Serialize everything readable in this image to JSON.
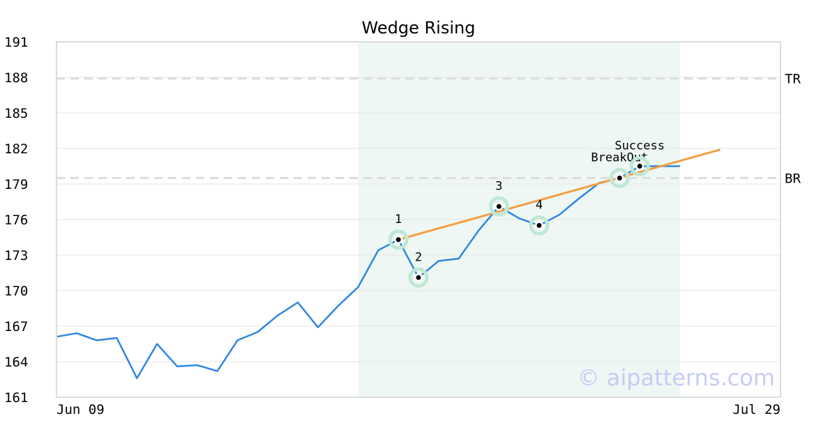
{
  "chart_data": {
    "type": "line",
    "title": "Wedge Rising",
    "watermark": "© aipatterns.com",
    "ylim": [
      161,
      191
    ],
    "y_ticks": [
      "191",
      "188",
      "185",
      "182",
      "179",
      "176",
      "173",
      "170",
      "167",
      "164",
      "161"
    ],
    "x_tick_labels": [
      "Jun 09",
      "Jul 29"
    ],
    "x_range": [
      0,
      36
    ],
    "series": [
      {
        "values": [
          166.1,
          166.4,
          165.8,
          166.0,
          162.6,
          165.5,
          163.6,
          163.7,
          163.2,
          165.8,
          166.5,
          167.9,
          169.0,
          166.9,
          168.7,
          170.3,
          173.4,
          174.3,
          171.1,
          172.5,
          172.7,
          175.1,
          177.1,
          176.1,
          175.5,
          176.4,
          177.8,
          179.1,
          179.5,
          180.5,
          180.5,
          180.5
        ]
      }
    ],
    "trendline": {
      "from": [
        17,
        174.3
      ],
      "to": [
        33,
        181.9
      ],
      "color": "#f59d44"
    },
    "highlight_range": [
      15,
      31
    ],
    "levels": [
      {
        "label": "TR",
        "value": 187.9
      },
      {
        "label": "BR",
        "value": 179.5
      }
    ],
    "markers": [
      {
        "label": "1",
        "x": 17,
        "y": 174.3
      },
      {
        "label": "2",
        "x": 18,
        "y": 171.1
      },
      {
        "label": "3",
        "x": 22,
        "y": 177.1
      },
      {
        "label": "4",
        "x": 24,
        "y": 175.5
      },
      {
        "label": "BreakOut",
        "x": 28,
        "y": 179.5
      },
      {
        "label": "Success",
        "x": 29,
        "y": 180.5
      }
    ],
    "grid": true,
    "colors": {
      "line": "#2f86e0",
      "highlight": "#eef7f3",
      "marker_ring": "#bfe8d4",
      "level_line": "#dddddd",
      "watermark": "#c9cbf6"
    }
  }
}
